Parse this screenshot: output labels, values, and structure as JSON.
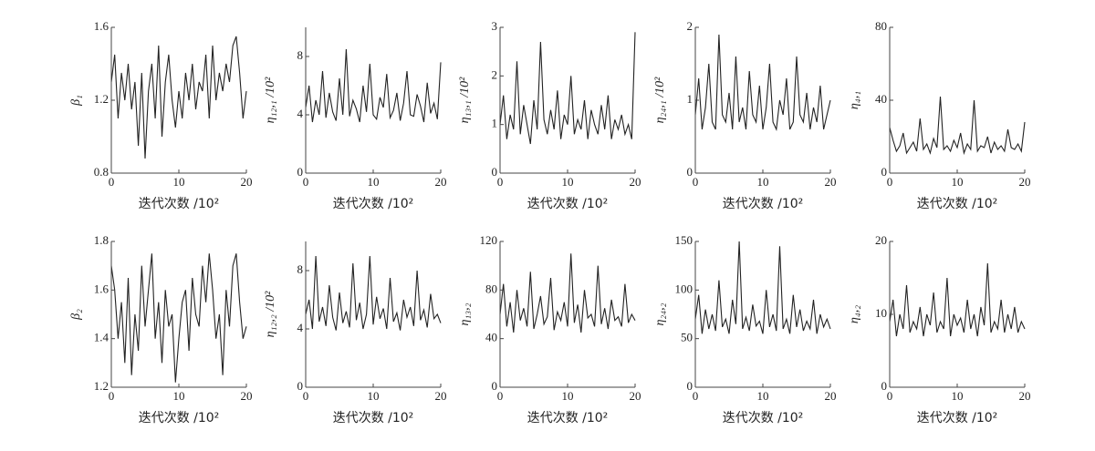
{
  "chart_data": [
    {
      "type": "line",
      "y_label": "β₁",
      "x_label": "迭代次数 /10²",
      "color": "#222222",
      "xlim": [
        0,
        20
      ],
      "xticks": [
        0,
        10,
        20
      ],
      "ylim": [
        0.8,
        1.6
      ],
      "yticks": [
        0.8,
        1.2,
        1.6
      ],
      "x": [
        0,
        0.5,
        1,
        1.5,
        2,
        2.5,
        3,
        3.5,
        4,
        4.5,
        5,
        5.5,
        6,
        6.5,
        7,
        7.5,
        8,
        8.5,
        9,
        9.5,
        10,
        10.5,
        11,
        11.5,
        12,
        12.5,
        13,
        13.5,
        14,
        14.5,
        15,
        15.5,
        16,
        16.5,
        17,
        17.5,
        18,
        18.5,
        19,
        19.5,
        20
      ],
      "values": [
        1.3,
        1.45,
        1.1,
        1.35,
        1.2,
        1.4,
        1.15,
        1.3,
        0.95,
        1.35,
        0.88,
        1.25,
        1.4,
        1.1,
        1.5,
        1.0,
        1.3,
        1.45,
        1.2,
        1.05,
        1.25,
        1.1,
        1.35,
        1.2,
        1.4,
        1.15,
        1.3,
        1.25,
        1.45,
        1.1,
        1.5,
        1.2,
        1.35,
        1.25,
        1.4,
        1.3,
        1.5,
        1.55,
        1.35,
        1.1,
        1.25
      ]
    },
    {
      "type": "line",
      "y_label": "η₁₂,₁ /10²",
      "x_label": "迭代次数 /10²",
      "color": "#222222",
      "xlim": [
        0,
        20
      ],
      "xticks": [
        0,
        10,
        20
      ],
      "ylim": [
        0,
        10
      ],
      "yticks": [
        0,
        4,
        8
      ],
      "x": [
        0,
        0.5,
        1,
        1.5,
        2,
        2.5,
        3,
        3.5,
        4,
        4.5,
        5,
        5.5,
        6,
        6.5,
        7,
        7.5,
        8,
        8.5,
        9,
        9.5,
        10,
        10.5,
        11,
        11.5,
        12,
        12.5,
        13,
        13.5,
        14,
        14.5,
        15,
        15.5,
        16,
        16.5,
        17,
        17.5,
        18,
        18.5,
        19,
        19.5,
        20
      ],
      "values": [
        4.5,
        6,
        3.5,
        5,
        4,
        7,
        3.8,
        5.5,
        4.2,
        3.6,
        6.5,
        4,
        8.5,
        3.9,
        5,
        4.4,
        3.5,
        6,
        4.2,
        7.5,
        4,
        3.7,
        5.2,
        4.5,
        6.8,
        3.8,
        4.3,
        5.5,
        3.6,
        4.8,
        7,
        4,
        3.9,
        5.4,
        4.6,
        3.5,
        6.2,
        4.1,
        4.8,
        3.7,
        7.6
      ]
    },
    {
      "type": "line",
      "y_label": "η₁₃,₁ /10²",
      "x_label": "迭代次数 /10²",
      "color": "#222222",
      "xlim": [
        0,
        20
      ],
      "xticks": [
        0,
        10,
        20
      ],
      "ylim": [
        0,
        3
      ],
      "yticks": [
        0,
        1,
        2,
        3
      ],
      "x": [
        0,
        0.5,
        1,
        1.5,
        2,
        2.5,
        3,
        3.5,
        4,
        4.5,
        5,
        5.5,
        6,
        6.5,
        7,
        7.5,
        8,
        8.5,
        9,
        9.5,
        10,
        10.5,
        11,
        11.5,
        12,
        12.5,
        13,
        13.5,
        14,
        14.5,
        15,
        15.5,
        16,
        16.5,
        17,
        17.5,
        18,
        18.5,
        19,
        19.5,
        20
      ],
      "values": [
        1,
        1.6,
        0.7,
        1.2,
        0.9,
        2.3,
        0.8,
        1.4,
        1,
        0.6,
        1.5,
        0.9,
        2.7,
        1.1,
        0.8,
        1.3,
        0.9,
        1.7,
        0.7,
        1.2,
        1,
        2.0,
        0.8,
        1.1,
        0.9,
        1.5,
        0.7,
        1.3,
        1,
        0.8,
        1.4,
        0.9,
        1.6,
        0.7,
        1.1,
        0.9,
        1.2,
        0.8,
        1.0,
        0.7,
        2.9
      ]
    },
    {
      "type": "line",
      "y_label": "η₂₄,₁ /10²",
      "x_label": "迭代次数 /10²",
      "color": "#222222",
      "xlim": [
        0,
        20
      ],
      "xticks": [
        0,
        10,
        20
      ],
      "ylim": [
        0,
        2
      ],
      "yticks": [
        0,
        1,
        2
      ],
      "x": [
        0,
        0.5,
        1,
        1.5,
        2,
        2.5,
        3,
        3.5,
        4,
        4.5,
        5,
        5.5,
        6,
        6.5,
        7,
        7.5,
        8,
        8.5,
        9,
        9.5,
        10,
        10.5,
        11,
        11.5,
        12,
        12.5,
        13,
        13.5,
        14,
        14.5,
        15,
        15.5,
        16,
        16.5,
        17,
        17.5,
        18,
        18.5,
        19,
        19.5,
        20
      ],
      "values": [
        0.8,
        1.3,
        0.6,
        0.9,
        1.5,
        0.7,
        0.6,
        1.9,
        0.8,
        0.7,
        1.1,
        0.6,
        1.6,
        0.7,
        0.9,
        0.6,
        1.4,
        0.8,
        0.7,
        1.2,
        0.6,
        0.9,
        1.5,
        0.7,
        0.6,
        1.0,
        0.8,
        1.3,
        0.6,
        0.7,
        1.6,
        0.8,
        0.7,
        1.1,
        0.6,
        0.9,
        0.7,
        1.2,
        0.6,
        0.8,
        1.0
      ]
    },
    {
      "type": "line",
      "y_label": "η₄,₁",
      "x_label": "迭代次数 /10²",
      "color": "#222222",
      "xlim": [
        0,
        20
      ],
      "xticks": [
        0,
        10,
        20
      ],
      "ylim": [
        0,
        80
      ],
      "yticks": [
        0,
        40,
        80
      ],
      "x": [
        0,
        0.5,
        1,
        1.5,
        2,
        2.5,
        3,
        3.5,
        4,
        4.5,
        5,
        5.5,
        6,
        6.5,
        7,
        7.5,
        8,
        8.5,
        9,
        9.5,
        10,
        10.5,
        11,
        11.5,
        12,
        12.5,
        13,
        13.5,
        14,
        14.5,
        15,
        15.5,
        16,
        16.5,
        17,
        17.5,
        18,
        18.5,
        19,
        19.5,
        20
      ],
      "values": [
        25,
        18,
        12,
        15,
        22,
        11,
        14,
        17,
        12,
        30,
        13,
        16,
        11,
        19,
        14,
        42,
        13,
        15,
        12,
        18,
        14,
        22,
        11,
        16,
        13,
        40,
        12,
        15,
        14,
        20,
        11,
        17,
        13,
        15,
        12,
        24,
        14,
        13,
        16,
        12,
        28
      ]
    },
    {
      "type": "line",
      "y_label": "β₂",
      "x_label": "迭代次数 /10²",
      "color": "#222222",
      "xlim": [
        0,
        20
      ],
      "xticks": [
        0,
        10,
        20
      ],
      "ylim": [
        1.2,
        1.8
      ],
      "yticks": [
        1.2,
        1.4,
        1.6,
        1.8
      ],
      "x": [
        0,
        0.5,
        1,
        1.5,
        2,
        2.5,
        3,
        3.5,
        4,
        4.5,
        5,
        5.5,
        6,
        6.5,
        7,
        7.5,
        8,
        8.5,
        9,
        9.5,
        10,
        10.5,
        11,
        11.5,
        12,
        12.5,
        13,
        13.5,
        14,
        14.5,
        15,
        15.5,
        16,
        16.5,
        17,
        17.5,
        18,
        18.5,
        19,
        19.5,
        20
      ],
      "values": [
        1.7,
        1.6,
        1.4,
        1.55,
        1.3,
        1.65,
        1.25,
        1.5,
        1.35,
        1.7,
        1.45,
        1.6,
        1.75,
        1.4,
        1.55,
        1.3,
        1.6,
        1.45,
        1.5,
        1.22,
        1.4,
        1.55,
        1.6,
        1.35,
        1.65,
        1.5,
        1.45,
        1.7,
        1.55,
        1.75,
        1.6,
        1.4,
        1.5,
        1.25,
        1.6,
        1.45,
        1.7,
        1.75,
        1.55,
        1.4,
        1.45
      ]
    },
    {
      "type": "line",
      "y_label": "η₁₂,₂ /10²",
      "x_label": "迭代次数 /10²",
      "color": "#222222",
      "xlim": [
        0,
        20
      ],
      "xticks": [
        0,
        10,
        20
      ],
      "ylim": [
        0,
        10
      ],
      "yticks": [
        0,
        4,
        8
      ],
      "x": [
        0,
        0.5,
        1,
        1.5,
        2,
        2.5,
        3,
        3.5,
        4,
        4.5,
        5,
        5.5,
        6,
        6.5,
        7,
        7.5,
        8,
        8.5,
        9,
        9.5,
        10,
        10.5,
        11,
        11.5,
        12,
        12.5,
        13,
        13.5,
        14,
        14.5,
        15,
        15.5,
        16,
        16.5,
        17,
        17.5,
        18,
        18.5,
        19,
        19.5,
        20
      ],
      "values": [
        5,
        6,
        4,
        9,
        4.5,
        5.5,
        4.2,
        7,
        4.8,
        3.9,
        6.5,
        4.4,
        5.2,
        4.1,
        8.5,
        4.6,
        5.8,
        4,
        5,
        9,
        4.3,
        6.2,
        4.7,
        5.4,
        4,
        7.5,
        4.5,
        5.1,
        3.9,
        6,
        4.8,
        5.5,
        4.2,
        8,
        4.6,
        5.3,
        4.1,
        6.4,
        4.7,
        5,
        4.4
      ]
    },
    {
      "type": "line",
      "y_label": "η₁₃,₂",
      "x_label": "迭代次数 /10²",
      "color": "#222222",
      "xlim": [
        0,
        20
      ],
      "xticks": [
        0,
        10,
        20
      ],
      "ylim": [
        0,
        120
      ],
      "yticks": [
        0,
        40,
        80,
        120
      ],
      "x": [
        0,
        0.5,
        1,
        1.5,
        2,
        2.5,
        3,
        3.5,
        4,
        4.5,
        5,
        5.5,
        6,
        6.5,
        7,
        7.5,
        8,
        8.5,
        9,
        9.5,
        10,
        10.5,
        11,
        11.5,
        12,
        12.5,
        13,
        13.5,
        14,
        14.5,
        15,
        15.5,
        16,
        16.5,
        17,
        17.5,
        18,
        18.5,
        19,
        19.5,
        20
      ],
      "values": [
        60,
        85,
        50,
        70,
        45,
        80,
        55,
        65,
        50,
        95,
        48,
        60,
        75,
        52,
        58,
        90,
        47,
        62,
        55,
        70,
        50,
        110,
        53,
        68,
        45,
        80,
        57,
        60,
        50,
        100,
        52,
        65,
        48,
        72,
        55,
        58,
        50,
        85,
        53,
        60,
        55
      ]
    },
    {
      "type": "line",
      "y_label": "η₂₄,₂",
      "x_label": "迭代次数 /10²",
      "color": "#222222",
      "xlim": [
        0,
        20
      ],
      "xticks": [
        0,
        10,
        20
      ],
      "ylim": [
        0,
        150
      ],
      "yticks": [
        0,
        50,
        100,
        150
      ],
      "x": [
        0,
        0.5,
        1,
        1.5,
        2,
        2.5,
        3,
        3.5,
        4,
        4.5,
        5,
        5.5,
        6,
        6.5,
        7,
        7.5,
        8,
        8.5,
        9,
        9.5,
        10,
        10.5,
        11,
        11.5,
        12,
        12.5,
        13,
        13.5,
        14,
        14.5,
        15,
        15.5,
        16,
        16.5,
        17,
        17.5,
        18,
        18.5,
        19,
        19.5,
        20
      ],
      "values": [
        70,
        95,
        55,
        80,
        60,
        75,
        58,
        110,
        62,
        70,
        55,
        90,
        65,
        150,
        60,
        72,
        58,
        85,
        63,
        68,
        55,
        100,
        62,
        75,
        58,
        145,
        60,
        70,
        55,
        95,
        62,
        80,
        58,
        68,
        60,
        90,
        55,
        75,
        62,
        70,
        60
      ]
    },
    {
      "type": "line",
      "y_label": "η₄,₂",
      "x_label": "迭代次数 /10²",
      "color": "#222222",
      "xlim": [
        0,
        20
      ],
      "xticks": [
        0,
        10,
        20
      ],
      "ylim": [
        0,
        20
      ],
      "yticks": [
        0,
        10,
        20
      ],
      "x": [
        0,
        0.5,
        1,
        1.5,
        2,
        2.5,
        3,
        3.5,
        4,
        4.5,
        5,
        5.5,
        6,
        6.5,
        7,
        7.5,
        8,
        8.5,
        9,
        9.5,
        10,
        10.5,
        11,
        11.5,
        12,
        12.5,
        13,
        13.5,
        14,
        14.5,
        15,
        15.5,
        16,
        16.5,
        17,
        17.5,
        18,
        18.5,
        19,
        19.5,
        20
      ],
      "values": [
        9,
        12,
        7,
        10,
        8,
        14,
        7.5,
        9,
        8,
        11,
        7,
        10,
        8.5,
        13,
        7.5,
        9,
        8,
        15,
        7,
        10,
        8.5,
        9.5,
        7.5,
        12,
        8,
        10,
        7,
        11,
        8.5,
        17,
        7.5,
        9,
        8,
        12,
        7.5,
        10,
        8,
        11,
        7.5,
        9,
        8
      ]
    }
  ]
}
